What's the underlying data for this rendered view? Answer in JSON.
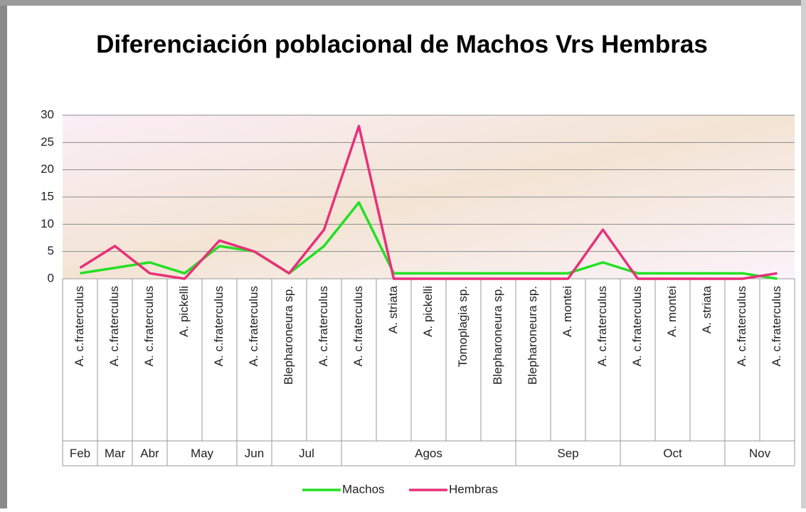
{
  "chart_data": {
    "type": "line",
    "title": "Diferenciación poblacional de Machos Vrs Hembras",
    "categories": [
      "A. c.fraterculus",
      "A. c.fraterculus",
      "A. c.fraterculus",
      "A. pickelli",
      "A. c.fraterculus",
      "A. c.fraterculus",
      "Blepharoneura sp.",
      "A. c.fraterculus",
      "A. c.fraterculus",
      "A. striata",
      "A. pickelli",
      "Tomoplagia sp.",
      "Blepharoneura sp.",
      "Blepharoneura sp.",
      "A. montei",
      "A. c.fraterculus",
      "A. c.fraterculus",
      "A. montei",
      "A. striata",
      "A. c.fraterculus",
      "A. c.fraterculus"
    ],
    "months": [
      "Feb",
      "Mar",
      "Abr",
      "May",
      null,
      "Jun",
      "Jul",
      null,
      "Agos",
      null,
      null,
      null,
      null,
      "Sep",
      null,
      null,
      "Oct",
      null,
      null,
      "Nov",
      null
    ],
    "series": [
      {
        "name": "Machos",
        "color": "#22e022",
        "values": [
          1,
          2,
          3,
          1,
          6,
          5,
          1,
          6,
          14,
          1,
          1,
          1,
          1,
          1,
          1,
          3,
          1,
          1,
          1,
          1,
          0
        ]
      },
      {
        "name": "Hembras",
        "color": "#e8307a",
        "values": [
          2,
          6,
          1,
          0,
          7,
          5,
          1,
          9,
          28,
          0,
          0,
          0,
          0,
          0,
          0,
          9,
          0,
          0,
          0,
          0,
          1
        ]
      }
    ],
    "ylim": [
      0,
      30
    ],
    "yticks": [
      0,
      5,
      10,
      15,
      20,
      25,
      30
    ],
    "grid": true,
    "legend": "bottom"
  }
}
